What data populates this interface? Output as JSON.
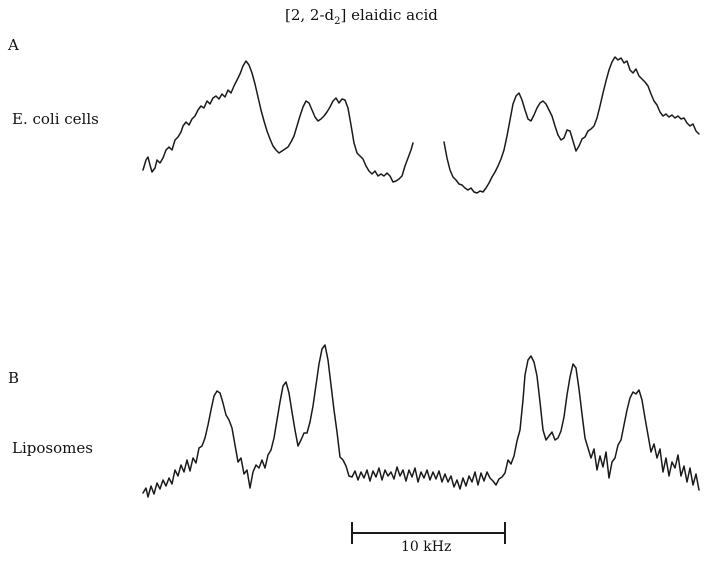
{
  "figure": {
    "title_main": "[2, 2-d",
    "title_sub": "2",
    "title_end": "] elaidic acid",
    "panels": [
      {
        "letter": "A",
        "label": "E. coli cells"
      },
      {
        "letter": "B",
        "label": "Liposomes"
      }
    ],
    "scale_bar_label": "10 kHz"
  }
}
